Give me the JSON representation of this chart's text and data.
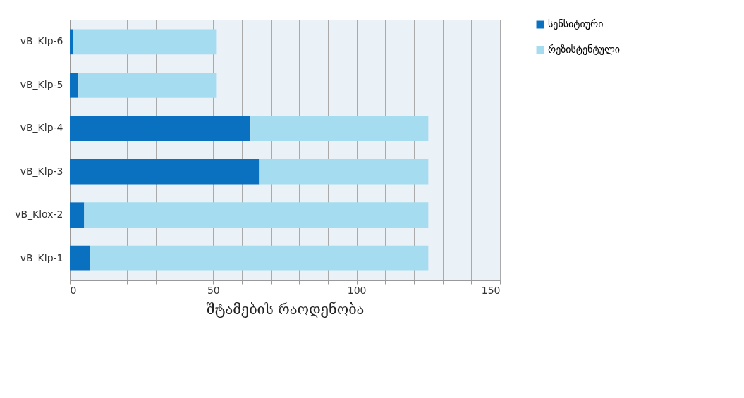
{
  "chart_data": {
    "type": "bar",
    "orientation": "horizontal",
    "stacked": true,
    "xlabel": "შტამების რაოდენობა",
    "categories": [
      "vB_Klp-6",
      "vB_Klp-5",
      "vB_Klp-4",
      "vB_Klp-3",
      "vB_Klox-2",
      "vB_Klp-1"
    ],
    "series": [
      {
        "name": "სენსიტიური",
        "color": "#0a70c0",
        "values": [
          1,
          3,
          63,
          66,
          5,
          7
        ]
      },
      {
        "name": "რეზისტენტული",
        "color": "#a6dcef",
        "values": [
          50,
          48,
          62,
          59,
          120,
          118
        ]
      }
    ],
    "xlim": [
      0,
      150
    ],
    "xticks": [
      0,
      {
        "value": 10,
        "label": null
      },
      {
        "value": 20,
        "label": null
      },
      {
        "value": 30,
        "label": null
      },
      {
        "value": 40,
        "label": null
      },
      50,
      {
        "value": 60,
        "label": null
      },
      {
        "value": 70,
        "label": null
      },
      {
        "value": 80,
        "label": null
      },
      {
        "value": 90,
        "label": null
      },
      100,
      {
        "value": 110,
        "label": null
      },
      {
        "value": 120,
        "label": null
      },
      {
        "value": 130,
        "label": null
      },
      {
        "value": 140,
        "label": null
      },
      150
    ],
    "grid": "x",
    "legend": "right"
  }
}
